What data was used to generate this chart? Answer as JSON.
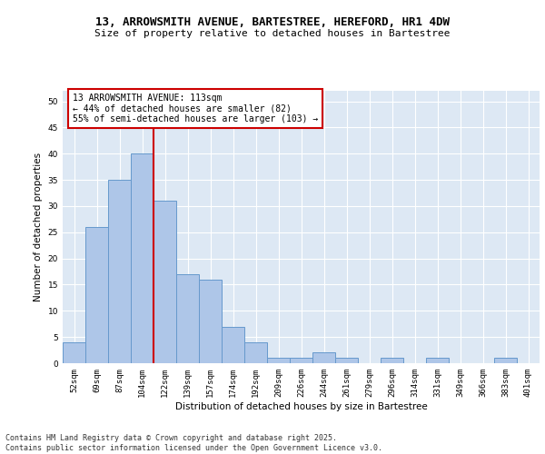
{
  "title_line1": "13, ARROWSMITH AVENUE, BARTESTREE, HEREFORD, HR1 4DW",
  "title_line2": "Size of property relative to detached houses in Bartestree",
  "xlabel": "Distribution of detached houses by size in Bartestree",
  "ylabel": "Number of detached properties",
  "categories": [
    "52sqm",
    "69sqm",
    "87sqm",
    "104sqm",
    "122sqm",
    "139sqm",
    "157sqm",
    "174sqm",
    "192sqm",
    "209sqm",
    "226sqm",
    "244sqm",
    "261sqm",
    "279sqm",
    "296sqm",
    "314sqm",
    "331sqm",
    "349sqm",
    "366sqm",
    "383sqm",
    "401sqm"
  ],
  "values": [
    4,
    26,
    35,
    40,
    31,
    17,
    16,
    7,
    4,
    1,
    1,
    2,
    1,
    0,
    1,
    0,
    1,
    0,
    0,
    1,
    0
  ],
  "bar_color": "#aec6e8",
  "bar_edge_color": "#6699cc",
  "bar_width": 1.0,
  "vline_x": 3.5,
  "vline_color": "#cc0000",
  "annotation_text": "13 ARROWSMITH AVENUE: 113sqm\n← 44% of detached houses are smaller (82)\n55% of semi-detached houses are larger (103) →",
  "annotation_box_color": "#ffffff",
  "annotation_box_edge_color": "#cc0000",
  "ylim": [
    0,
    52
  ],
  "yticks": [
    0,
    5,
    10,
    15,
    20,
    25,
    30,
    35,
    40,
    45,
    50
  ],
  "background_color": "#dde8f4",
  "grid_color": "#ffffff",
  "footer_line1": "Contains HM Land Registry data © Crown copyright and database right 2025.",
  "footer_line2": "Contains public sector information licensed under the Open Government Licence v3.0.",
  "title_fontsize": 9,
  "subtitle_fontsize": 8,
  "axis_label_fontsize": 7.5,
  "tick_fontsize": 6.5,
  "annotation_fontsize": 7,
  "footer_fontsize": 6
}
